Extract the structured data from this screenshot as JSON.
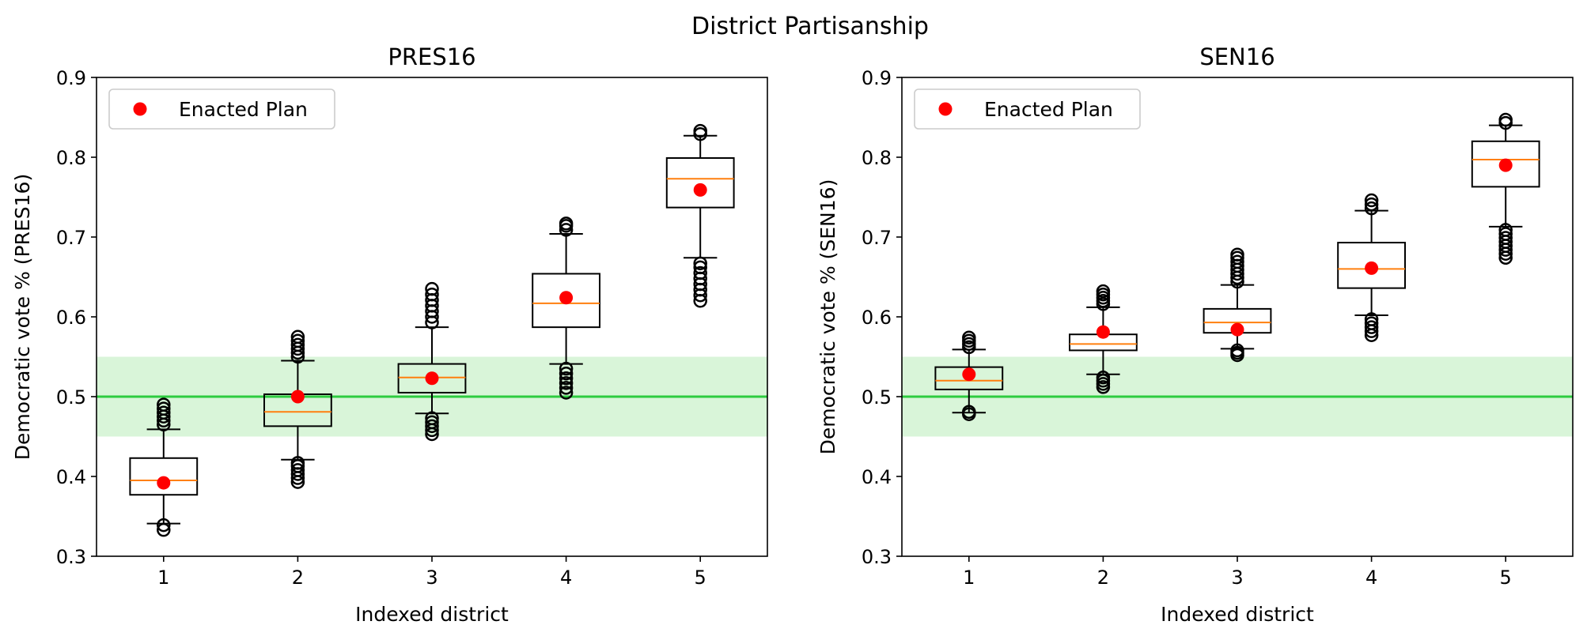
{
  "figure": {
    "suptitle": "District Partisanship"
  },
  "chart_data": [
    {
      "type": "box",
      "title": "PRES16",
      "xlabel": "Indexed district",
      "ylabel": "Democratic vote % (PRES16)",
      "ylim": [
        0.3,
        0.9
      ],
      "xlim": [
        0.5,
        5.5
      ],
      "categories": [
        "1",
        "2",
        "3",
        "4",
        "5"
      ],
      "yticks": [
        "0.3",
        "0.4",
        "0.5",
        "0.6",
        "0.7",
        "0.8",
        "0.9"
      ],
      "reference_line": 0.5,
      "reference_band": [
        0.45,
        0.55
      ],
      "legend": {
        "label": "Enacted Plan",
        "placement": "upper-left"
      },
      "boxes": [
        {
          "q1": 0.377,
          "median": 0.395,
          "q3": 0.423,
          "whisker_low": 0.341,
          "whisker_high": 0.459,
          "outliers_low": [
            0.333,
            0.339
          ],
          "outliers_high": [
            0.465,
            0.47,
            0.475,
            0.48,
            0.485,
            0.49
          ]
        },
        {
          "q1": 0.463,
          "median": 0.481,
          "q3": 0.503,
          "whisker_low": 0.421,
          "whisker_high": 0.545,
          "outliers_low": [
            0.393,
            0.398,
            0.403,
            0.408,
            0.413,
            0.417
          ],
          "outliers_high": [
            0.55,
            0.555,
            0.56,
            0.565,
            0.57,
            0.575
          ]
        },
        {
          "q1": 0.505,
          "median": 0.524,
          "q3": 0.541,
          "whisker_low": 0.479,
          "whisker_high": 0.587,
          "outliers_low": [
            0.453,
            0.458,
            0.463,
            0.468,
            0.473
          ],
          "outliers_high": [
            0.593,
            0.6,
            0.607,
            0.614,
            0.621,
            0.628,
            0.635
          ]
        },
        {
          "q1": 0.587,
          "median": 0.617,
          "q3": 0.654,
          "whisker_low": 0.541,
          "whisker_high": 0.704,
          "outliers_low": [
            0.505,
            0.511,
            0.517,
            0.523,
            0.529,
            0.535
          ],
          "outliers_high": [
            0.709,
            0.714,
            0.717
          ]
        },
        {
          "q1": 0.737,
          "median": 0.773,
          "q3": 0.799,
          "whisker_low": 0.674,
          "whisker_high": 0.827,
          "outliers_low": [
            0.62,
            0.627,
            0.634,
            0.641,
            0.648,
            0.655,
            0.662,
            0.667
          ],
          "outliers_high": [
            0.829,
            0.833
          ]
        }
      ],
      "enacted_plan": [
        0.392,
        0.5,
        0.523,
        0.624,
        0.759
      ]
    },
    {
      "type": "box",
      "title": "SEN16",
      "xlabel": "Indexed district",
      "ylabel": "Democratic vote % (SEN16)",
      "ylim": [
        0.3,
        0.9
      ],
      "xlim": [
        0.5,
        5.5
      ],
      "categories": [
        "1",
        "2",
        "3",
        "4",
        "5"
      ],
      "yticks": [
        "0.3",
        "0.4",
        "0.5",
        "0.6",
        "0.7",
        "0.8",
        "0.9"
      ],
      "reference_line": 0.5,
      "reference_band": [
        0.45,
        0.55
      ],
      "legend": {
        "label": "Enacted Plan",
        "placement": "upper-left"
      },
      "boxes": [
        {
          "q1": 0.509,
          "median": 0.52,
          "q3": 0.537,
          "whisker_low": 0.48,
          "whisker_high": 0.559,
          "outliers_low": [
            0.478,
            0.481
          ],
          "outliers_high": [
            0.562,
            0.566,
            0.57,
            0.574
          ]
        },
        {
          "q1": 0.558,
          "median": 0.566,
          "q3": 0.578,
          "whisker_low": 0.528,
          "whisker_high": 0.612,
          "outliers_low": [
            0.512,
            0.516,
            0.52,
            0.524
          ],
          "outliers_high": [
            0.616,
            0.62,
            0.624,
            0.628,
            0.632
          ]
        },
        {
          "q1": 0.58,
          "median": 0.593,
          "q3": 0.61,
          "whisker_low": 0.56,
          "whisker_high": 0.64,
          "outliers_low": [
            0.552,
            0.555,
            0.558
          ],
          "outliers_high": [
            0.644,
            0.649,
            0.654,
            0.659,
            0.664,
            0.669,
            0.674,
            0.678
          ]
        },
        {
          "q1": 0.636,
          "median": 0.66,
          "q3": 0.693,
          "whisker_low": 0.602,
          "whisker_high": 0.733,
          "outliers_low": [
            0.577,
            0.582,
            0.587,
            0.592,
            0.597
          ],
          "outliers_high": [
            0.736,
            0.741,
            0.746
          ]
        },
        {
          "q1": 0.763,
          "median": 0.797,
          "q3": 0.82,
          "whisker_low": 0.713,
          "whisker_high": 0.84,
          "outliers_low": [
            0.674,
            0.679,
            0.684,
            0.689,
            0.694,
            0.699,
            0.704,
            0.709
          ],
          "outliers_high": [
            0.843,
            0.847
          ]
        }
      ],
      "enacted_plan": [
        0.528,
        0.581,
        0.584,
        0.661,
        0.79
      ]
    }
  ],
  "colors": {
    "box_edge": "#000000",
    "median": "#ff7f0e",
    "enacted": "#ff0000",
    "reference_line": "#2ecc40",
    "reference_band": "#d9f5d9",
    "legend_border": "#cccccc"
  }
}
